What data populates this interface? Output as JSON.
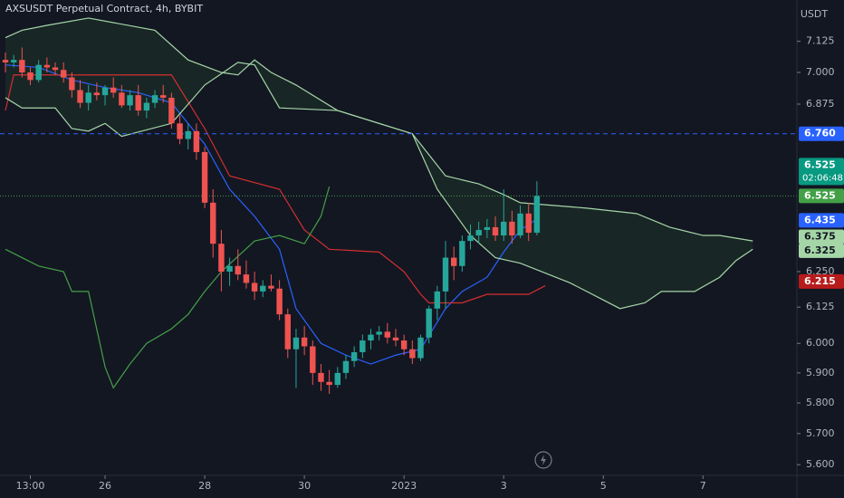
{
  "chart_data": {
    "type": "candlestick",
    "title": "AXSUSDT Perpetual Contract, 4h, BYBIT",
    "y_unit": "USDT",
    "log_scale": true,
    "grid": false,
    "up_color": "#26a69a",
    "down_color": "#ef5350",
    "cloud_fill": "rgba(76,175,80,0.10)",
    "xlim": [
      -0.654,
      95.31
    ],
    "ylim": [
      5.566,
      7.2945
    ],
    "xticks": [
      {
        "value": 3,
        "label": "13:00"
      },
      {
        "value": 12,
        "label": "26"
      },
      {
        "value": 24,
        "label": "28"
      },
      {
        "value": 36,
        "label": "30"
      },
      {
        "value": 48,
        "label": "2023"
      },
      {
        "value": 60,
        "label": "3"
      },
      {
        "value": 72,
        "label": "5"
      },
      {
        "value": 84,
        "label": "7"
      }
    ],
    "yticks": [
      7.125,
      {
        "value": 7,
        "label": "7.000"
      },
      6.875,
      {
        "value": 6.25,
        "label": "6.250"
      },
      6.125,
      {
        "value": 6,
        "label": "6.000"
      },
      {
        "value": 5.9,
        "label": "5.900"
      },
      {
        "value": 5.8,
        "label": "5.800"
      },
      {
        "value": 5.7,
        "label": "5.700"
      },
      {
        "value": 5.6,
        "label": "5.600"
      }
    ],
    "x": [
      0,
      1,
      2,
      3,
      4,
      5,
      6,
      7,
      8,
      9,
      10,
      11,
      12,
      13,
      14,
      15,
      16,
      17,
      18,
      19,
      20,
      21,
      22,
      23,
      24,
      25,
      26,
      27,
      28,
      29,
      30,
      31,
      32,
      33,
      34,
      35,
      36,
      37,
      38,
      39,
      40,
      41,
      42,
      43,
      44,
      45,
      46,
      47,
      48,
      49,
      50,
      51,
      52,
      53,
      54,
      55,
      56,
      57,
      58,
      59,
      60,
      61,
      62,
      63,
      64
    ],
    "open": [
      7.05,
      7.04,
      7.05,
      7.0,
      6.97,
      7.03,
      7.02,
      7.01,
      6.98,
      6.93,
      6.88,
      6.92,
      6.91,
      6.94,
      6.92,
      6.87,
      6.91,
      6.85,
      6.88,
      6.91,
      6.9,
      6.8,
      6.74,
      6.77,
      6.69,
      6.5,
      6.35,
      6.25,
      6.27,
      6.24,
      6.21,
      6.18,
      6.2,
      6.19,
      6.1,
      5.98,
      6.02,
      5.99,
      5.9,
      5.87,
      5.86,
      5.9,
      5.94,
      5.97,
      6.01,
      6.03,
      6.04,
      6.02,
      6.01,
      5.98,
      5.95,
      6.02,
      6.12,
      6.18,
      6.3,
      6.27,
      6.36,
      6.38,
      6.4,
      6.41,
      6.38,
      6.43,
      6.38,
      6.46,
      6.39
    ],
    "high": [
      7.08,
      7.07,
      7.1,
      7.02,
      7.05,
      7.06,
      7.04,
      7.04,
      7.0,
      6.97,
      6.95,
      6.96,
      6.95,
      6.98,
      6.95,
      6.93,
      6.95,
      6.9,
      6.93,
      6.95,
      6.92,
      6.83,
      6.8,
      6.8,
      6.71,
      6.55,
      6.4,
      6.3,
      6.33,
      6.29,
      6.25,
      6.22,
      6.24,
      6.22,
      6.12,
      6.05,
      6.06,
      6.01,
      5.93,
      5.91,
      5.92,
      5.96,
      5.99,
      6.03,
      6.05,
      6.06,
      6.07,
      6.05,
      6.03,
      6.01,
      6.03,
      6.13,
      6.2,
      6.36,
      6.34,
      6.38,
      6.42,
      6.43,
      6.44,
      6.45,
      6.55,
      6.47,
      6.49,
      6.5,
      6.58
    ],
    "low": [
      7.0,
      7.02,
      6.98,
      6.95,
      6.96,
      7.0,
      6.99,
      6.96,
      6.9,
      6.86,
      6.85,
      6.89,
      6.87,
      6.9,
      6.86,
      6.85,
      6.83,
      6.82,
      6.86,
      6.88,
      6.78,
      6.72,
      6.7,
      6.66,
      6.48,
      6.3,
      6.18,
      6.2,
      6.22,
      6.19,
      6.15,
      6.16,
      6.18,
      6.08,
      5.95,
      5.85,
      5.96,
      5.86,
      5.84,
      5.83,
      5.85,
      5.88,
      5.92,
      5.95,
      5.98,
      6.01,
      6.0,
      5.99,
      5.96,
      5.93,
      5.94,
      6.0,
      6.08,
      6.12,
      6.22,
      6.25,
      6.33,
      6.35,
      6.37,
      6.36,
      6.36,
      6.35,
      6.37,
      6.36,
      6.38
    ],
    "close": [
      7.04,
      7.05,
      7.0,
      6.97,
      7.03,
      7.02,
      7.01,
      6.98,
      6.93,
      6.88,
      6.92,
      6.91,
      6.94,
      6.92,
      6.87,
      6.91,
      6.85,
      6.88,
      6.91,
      6.9,
      6.8,
      6.74,
      6.77,
      6.69,
      6.5,
      6.35,
      6.25,
      6.27,
      6.24,
      6.21,
      6.18,
      6.2,
      6.19,
      6.1,
      5.98,
      6.02,
      5.99,
      5.9,
      5.87,
      5.86,
      5.9,
      5.94,
      5.97,
      6.01,
      6.03,
      6.04,
      6.02,
      6.01,
      5.98,
      5.95,
      6.02,
      6.12,
      6.18,
      6.3,
      6.27,
      6.36,
      6.38,
      6.4,
      6.41,
      6.38,
      6.43,
      6.38,
      6.46,
      6.39,
      6.525
    ],
    "lines": [
      {
        "color": "#2962ff",
        "x": [
          0,
          4,
          8,
          12,
          16,
          20,
          24,
          27,
          30,
          33,
          35,
          38,
          41,
          44,
          47,
          50,
          53,
          55,
          58,
          60,
          62,
          64
        ],
        "values": [
          7.03,
          7.02,
          6.97,
          6.94,
          6.92,
          6.88,
          6.72,
          6.55,
          6.45,
          6.33,
          6.12,
          6.0,
          5.96,
          5.93,
          5.96,
          5.98,
          6.12,
          6.18,
          6.23,
          6.32,
          6.4,
          6.44
        ]
      },
      {
        "color": "#d32f2f",
        "x": [
          0,
          1,
          8,
          20,
          24,
          27,
          33,
          36,
          39,
          45,
          48,
          50,
          51,
          55,
          58,
          63,
          65
        ],
        "values": [
          6.85,
          6.99,
          6.99,
          6.99,
          6.78,
          6.6,
          6.55,
          6.4,
          6.33,
          6.32,
          6.25,
          6.17,
          6.14,
          6.14,
          6.17,
          6.17,
          6.2
        ]
      },
      {
        "color": "#43a047",
        "x": [
          0,
          4,
          7,
          8,
          10,
          12,
          13,
          15,
          17,
          20,
          22,
          24,
          26,
          30,
          33,
          36,
          38,
          39
        ],
        "values": [
          6.33,
          6.27,
          6.25,
          6.18,
          6.18,
          5.92,
          5.85,
          5.93,
          6.0,
          6.05,
          6.1,
          6.18,
          6.25,
          6.36,
          6.38,
          6.35,
          6.45,
          6.56
        ]
      },
      {
        "color": "#a5d6a7",
        "x": [
          0,
          2,
          5,
          10,
          18,
          22,
          26,
          28,
          30,
          32,
          35,
          40,
          49,
          51,
          53,
          57,
          60,
          62,
          66,
          70,
          76,
          80,
          84,
          86,
          90
        ],
        "values": [
          7.14,
          7.17,
          7.19,
          7.22,
          7.17,
          7.05,
          7.0,
          6.99,
          7.05,
          7.0,
          6.95,
          6.85,
          6.76,
          6.68,
          6.6,
          6.57,
          6.53,
          6.5,
          6.49,
          6.48,
          6.46,
          6.41,
          6.38,
          6.38,
          6.36
        ]
      },
      {
        "color": "#a5d6a7",
        "x": [
          0,
          2,
          6,
          8,
          10,
          12,
          14,
          20,
          24,
          28,
          30,
          33,
          40,
          49,
          52,
          56,
          59,
          62,
          68,
          72,
          74,
          77,
          79,
          83,
          86,
          88,
          90
        ],
        "values": [
          6.9,
          6.86,
          6.86,
          6.78,
          6.77,
          6.8,
          6.75,
          6.8,
          6.95,
          7.04,
          7.03,
          6.86,
          6.85,
          6.76,
          6.55,
          6.38,
          6.3,
          6.28,
          6.21,
          6.15,
          6.12,
          6.14,
          6.18,
          6.18,
          6.23,
          6.29,
          6.33
        ]
      }
    ],
    "price_tags": [
      {
        "value": 6.76,
        "label": "6.760",
        "color": "#2962ff",
        "text_color": "#ffffff",
        "line": "dashed"
      },
      {
        "value": 6.525,
        "color": "#089981",
        "text_color": "#ffffff",
        "countdown": "02:06:48"
      },
      {
        "value": 6.525,
        "color": "#43a047",
        "text_color": "#ffffff",
        "line": "dotted"
      },
      {
        "value": 6.435,
        "color": "#2962ff",
        "text_color": "#ffffff"
      },
      {
        "value": 6.375,
        "color": "#a5d6a7",
        "text_color": "#131722"
      },
      {
        "value": 6.325,
        "color": "#a5d6a7",
        "text_color": "#131722"
      },
      {
        "value": 6.215,
        "color": "#b71c1c",
        "text_color": "#ffffff"
      }
    ]
  }
}
